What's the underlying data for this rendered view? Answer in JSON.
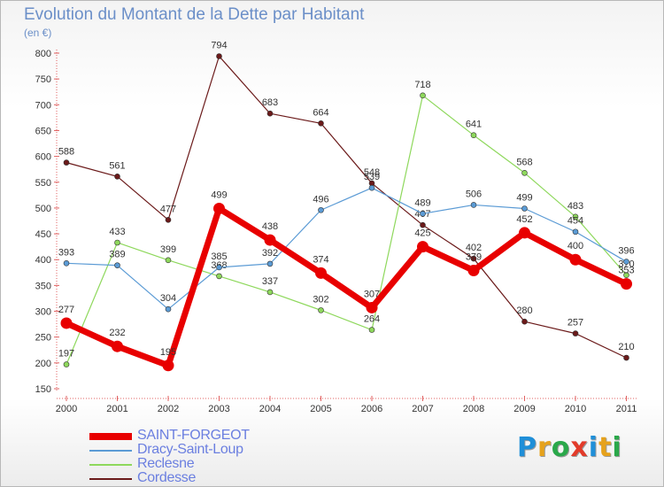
{
  "title": "Evolution du Montant de la Dette par Habitant",
  "unit": "(en €)",
  "chart_data": {
    "type": "line",
    "x": [
      "2000",
      "2001",
      "2002",
      "2003",
      "2004",
      "2005",
      "2006",
      "2007",
      "2008",
      "2009",
      "2010",
      "2011"
    ],
    "yticks": [
      150,
      200,
      250,
      300,
      350,
      400,
      450,
      500,
      550,
      600,
      650,
      700,
      750,
      800
    ],
    "ylim": [
      150,
      800
    ],
    "grid": false,
    "legend_position": "bottom-left",
    "series": [
      {
        "name": "SAINT-FORGEOT",
        "color": "#e80000",
        "values": [
          277,
          232,
          195,
          499,
          438,
          374,
          307,
          425,
          379,
          452,
          400,
          353
        ]
      },
      {
        "name": "Dracy-Saint-Loup",
        "color": "#5b9bd5",
        "values": [
          393,
          389,
          304,
          385,
          392,
          496,
          539,
          489,
          506,
          499,
          454,
          396
        ]
      },
      {
        "name": "Reclesne",
        "color": "#8ed85c",
        "values": [
          197,
          433,
          399,
          368,
          337,
          302,
          264,
          718,
          641,
          568,
          483,
          370
        ]
      },
      {
        "name": "Cordesse",
        "color": "#6b1a1a",
        "values": [
          588,
          561,
          477,
          794,
          683,
          664,
          548,
          467,
          402,
          280,
          257,
          210
        ]
      }
    ]
  },
  "legend": [
    "SAINT-FORGEOT",
    "Dracy-Saint-Loup",
    "Reclesne",
    "Cordesse"
  ],
  "logo": {
    "letters": [
      "P",
      "r",
      "o",
      "x",
      "i",
      "t",
      "i"
    ],
    "colors": [
      "#1f8fd8",
      "#e6a21c",
      "#2aa84a",
      "#e23b2a",
      "#1f8fd8",
      "#e6a21c",
      "#2aa84a"
    ]
  }
}
